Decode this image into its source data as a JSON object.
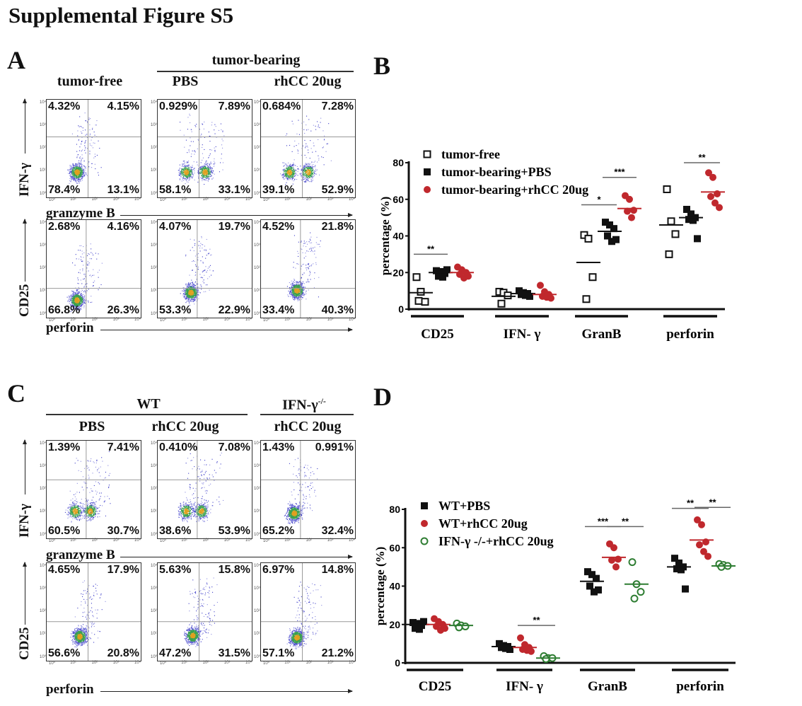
{
  "figure_title": "Supplemental Figure S5",
  "flow_axis_ticks": [
    "10⁰",
    "10¹",
    "10²",
    "10³",
    "10⁴"
  ],
  "panel_a": {
    "label": "A",
    "group_header": "tumor-bearing",
    "columns": [
      "tumor-free",
      "PBS",
      "rhCC 20ug"
    ],
    "row1": {
      "y_label": "IFN-γ",
      "x_label": "granzyme B",
      "plots": [
        {
          "ul": "4.32%",
          "ur": "4.15%",
          "ll": "78.4%",
          "lr": "13.1%"
        },
        {
          "ul": "0.929%",
          "ur": "7.89%",
          "ll": "58.1%",
          "lr": "33.1%"
        },
        {
          "ul": "0.684%",
          "ur": "7.28%",
          "ll": "39.1%",
          "lr": "52.9%"
        }
      ]
    },
    "row2": {
      "y_label": "CD25",
      "x_label": "perforin",
      "plots": [
        {
          "ul": "2.68%",
          "ur": "4.16%",
          "ll": "66.8%",
          "lr": "26.3%"
        },
        {
          "ul": "4.07%",
          "ur": "19.7%",
          "ll": "53.3%",
          "lr": "22.9%"
        },
        {
          "ul": "4.52%",
          "ur": "21.8%",
          "ll": "33.4%",
          "lr": "40.3%"
        }
      ]
    }
  },
  "panel_c": {
    "label": "C",
    "group_header_wt": "WT",
    "group_header_ko": "IFN-γ",
    "group_header_ko_sup": "-/-",
    "columns": [
      "PBS",
      "rhCC 20ug",
      "rhCC 20ug"
    ],
    "row1": {
      "y_label": "IFN-γ",
      "x_label": "granzyme B",
      "plots": [
        {
          "ul": "1.39%",
          "ur": "7.41%",
          "ll": "60.5%",
          "lr": "30.7%"
        },
        {
          "ul": "0.410%",
          "ur": "7.08%",
          "ll": "38.6%",
          "lr": "53.9%"
        },
        {
          "ul": "1.43%",
          "ur": "0.991%",
          "ll": "65.2%",
          "lr": "32.4%"
        }
      ]
    },
    "row2": {
      "y_label": "CD25",
      "x_label": "perforin",
      "plots": [
        {
          "ul": "4.65%",
          "ur": "17.9%",
          "ll": "56.6%",
          "lr": "20.8%"
        },
        {
          "ul": "5.63%",
          "ur": "15.8%",
          "ll": "47.2%",
          "lr": "31.5%"
        },
        {
          "ul": "6.97%",
          "ur": "14.8%",
          "ll": "57.1%",
          "lr": "21.2%"
        }
      ]
    }
  },
  "chart_data": [
    {
      "panel": "B",
      "type": "scatter",
      "ylabel": "percentage (%)",
      "ylim": [
        0,
        80
      ],
      "yticks": [
        "0",
        "20",
        "40",
        "60",
        "80"
      ],
      "categories": [
        "CD25",
        "IFN- γ",
        "GranB",
        "perforin"
      ],
      "legend_position": "top-left",
      "series": [
        {
          "name": "tumor-free",
          "marker": "open-square",
          "color": "#111111",
          "values": [
            [
              17.5,
              9.5,
              4,
              4.5
            ],
            [
              9.5,
              9,
              7.5,
              3
            ],
            [
              40.5,
              38.5,
              17.5,
              5.5
            ],
            [
              65.5,
              48,
              41,
              30
            ]
          ],
          "means": [
            9,
            7,
            25.5,
            46
          ]
        },
        {
          "name": "tumor-bearing+PBS",
          "marker": "filled-square",
          "color": "#111111",
          "values": [
            [
              21,
              20.5,
              19.5,
              18,
              17.5,
              21.5
            ],
            [
              10,
              9,
              8.5,
              8,
              7.5,
              7
            ],
            [
              47.5,
              46,
              44,
              40,
              37,
              38
            ],
            [
              54.5,
              52,
              50,
              49,
              48.5,
              38.5
            ]
          ],
          "means": [
            20,
            8.5,
            42.5,
            50
          ]
        },
        {
          "name": "tumor-bearing+rhCC 20ug",
          "marker": "filled-circle",
          "color": "#c0282d",
          "values": [
            [
              23,
              21.5,
              20,
              19,
              17,
              18
            ],
            [
              13,
              9.5,
              8,
              7,
              6.5,
              6
            ],
            [
              62,
              60,
              54,
              53.5,
              50
            ],
            [
              74.5,
              72,
              63,
              61.5,
              58,
              55.5
            ]
          ],
          "means": [
            20,
            8,
            55,
            64
          ]
        }
      ],
      "significance": [
        {
          "category": "CD25",
          "between": [
            0,
            1
          ],
          "y": 30,
          "label": "**"
        },
        {
          "category": "GranB",
          "between": [
            0,
            1
          ],
          "y": 57,
          "label": "*"
        },
        {
          "category": "GranB",
          "between": [
            1,
            2
          ],
          "y": 72,
          "label": "***"
        },
        {
          "category": "perforin",
          "between": [
            1,
            2
          ],
          "y": 80,
          "label": "**"
        }
      ]
    },
    {
      "panel": "D",
      "type": "scatter",
      "ylabel": "percentage (%)",
      "ylim": [
        0,
        80
      ],
      "yticks": [
        "0",
        "20",
        "40",
        "60",
        "80"
      ],
      "categories": [
        "CD25",
        "IFN- γ",
        "GranB",
        "perforin"
      ],
      "legend_position": "top-left",
      "series": [
        {
          "name": "WT+PBS",
          "marker": "filled-square",
          "color": "#111111",
          "values": [
            [
              21,
              20.5,
              19.5,
              18,
              17.5,
              21.5
            ],
            [
              10,
              9,
              8.5,
              8,
              7.5,
              7
            ],
            [
              47.5,
              46,
              44,
              40,
              37,
              38
            ],
            [
              54.5,
              52,
              50,
              49,
              48.5,
              38.5
            ]
          ],
          "means": [
            20,
            8.5,
            42.5,
            50
          ]
        },
        {
          "name": "WT+rhCC 20ug",
          "marker": "filled-circle",
          "color": "#c0282d",
          "values": [
            [
              23,
              21.5,
              20,
              19,
              17,
              18
            ],
            [
              13,
              9.5,
              8,
              7,
              6.5,
              6
            ],
            [
              62,
              60,
              54,
              53.5,
              50
            ],
            [
              74.5,
              72,
              63,
              61.5,
              58,
              55.5
            ]
          ],
          "means": [
            20,
            8,
            55,
            64
          ]
        },
        {
          "name": "IFN-γ -/-+rhCC 20ug",
          "marker": "open-circle",
          "color": "#2e7d32",
          "values": [
            [
              20.5,
              19.5,
              19,
              18.5
            ],
            [
              3.5,
              2.5,
              2.5,
              2
            ],
            [
              52.5,
              41,
              37,
              33.5
            ],
            [
              51.5,
              51,
              50.5,
              50
            ]
          ],
          "means": [
            19.5,
            2.5,
            41,
            50.5
          ]
        }
      ],
      "significance": [
        {
          "category": "IFN- γ",
          "between": [
            1,
            2
          ],
          "y": 19.5,
          "label": "**"
        },
        {
          "category": "GranB",
          "between": [
            0,
            1
          ],
          "y": 71,
          "label": "***"
        },
        {
          "category": "GranB",
          "between": [
            1,
            2
          ],
          "y": 71,
          "label": "**"
        },
        {
          "category": "perforin",
          "between": [
            0,
            1
          ],
          "y": 80.5,
          "label": "**"
        },
        {
          "category": "perforin",
          "between": [
            1,
            2
          ],
          "y": 81,
          "label": "**"
        }
      ]
    }
  ]
}
